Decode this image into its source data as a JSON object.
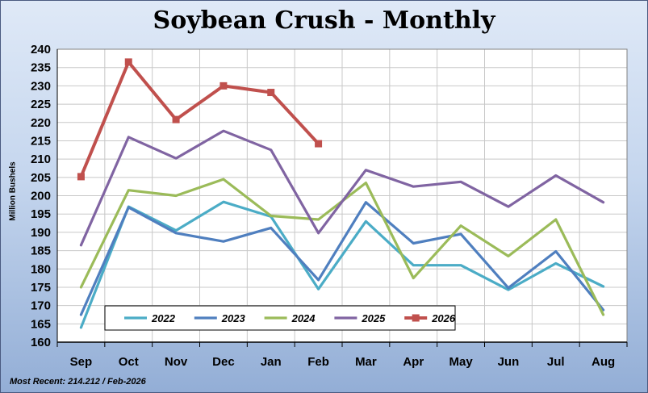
{
  "title": "Soybean Crush - Monthly",
  "footer": "Most Recent: 214.212 / Feb-2026",
  "chart_data": {
    "type": "line",
    "title": "Soybean Crush - Monthly",
    "xlabel": "",
    "ylabel": "Million Bushels",
    "ylim": [
      160,
      240
    ],
    "ytick_step": 5,
    "grid": true,
    "legend_position": "bottom-left",
    "categories": [
      "Sep",
      "Oct",
      "Nov",
      "Dec",
      "Jan",
      "Feb",
      "Mar",
      "Apr",
      "May",
      "Jun",
      "Jul",
      "Aug"
    ],
    "series": [
      {
        "name": "2022",
        "color": "#4bacc6",
        "marker": false,
        "values": [
          164,
          197,
          190.5,
          198.3,
          194.3,
          174.5,
          193,
          181,
          181,
          174.3,
          181.5,
          175.2
        ]
      },
      {
        "name": "2023",
        "color": "#4f7fbf",
        "marker": false,
        "values": [
          167.5,
          196.8,
          189.8,
          187.5,
          191.2,
          177,
          198.2,
          187,
          189.5,
          174.8,
          184.8,
          168.8
        ]
      },
      {
        "name": "2024",
        "color": "#9bbb59",
        "marker": false,
        "values": [
          175,
          201.5,
          200,
          204.5,
          194.5,
          193.5,
          203.5,
          177.5,
          191.8,
          183.5,
          193.5,
          167.5
        ]
      },
      {
        "name": "2025",
        "color": "#8064a2",
        "marker": false,
        "values": [
          186.5,
          216,
          210.2,
          217.7,
          212.5,
          189.8,
          207,
          202.5,
          203.8,
          197,
          205.5,
          198.2
        ]
      },
      {
        "name": "2026",
        "color": "#c0504d",
        "marker": true,
        "values": [
          205.2,
          236.5,
          220.8,
          230,
          228.2,
          214.2,
          null,
          null,
          null,
          null,
          null,
          null
        ]
      }
    ]
  }
}
